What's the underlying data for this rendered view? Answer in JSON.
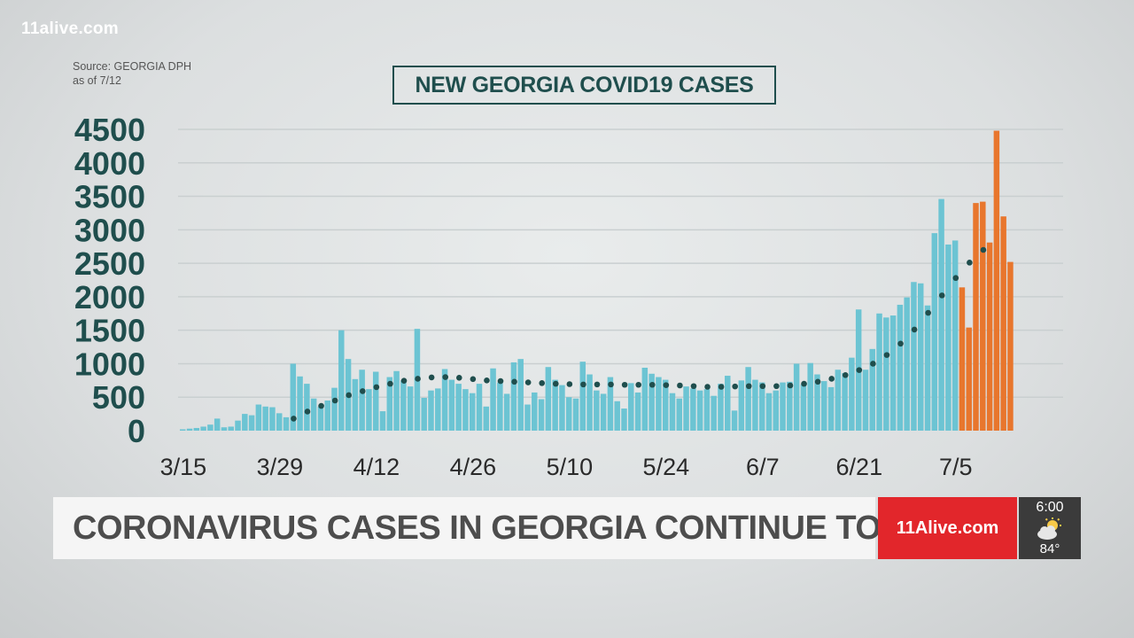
{
  "watermark": "11alive.com",
  "source_line1": "Source: GEORGIA DPH",
  "source_line2": "as of 7/12",
  "lower_third": {
    "headline": "CORONAVIRUS CASES IN GEORGIA CONTINUE TO RISE",
    "brand": "11Alive.com",
    "time": "6:00",
    "weather_icon": "partly-cloudy-icon",
    "temperature": "84°"
  },
  "colors": {
    "bar": "#6cc4d3",
    "recent_bar": "#e8762d",
    "trend": "#1f4e4d",
    "axis_text": "#1f4e4d",
    "brand_red": "#e2262b"
  },
  "chart_data": {
    "type": "bar",
    "title": "NEW GEORGIA COVID19 CASES",
    "xlabel": "",
    "ylabel": "",
    "ylim": [
      0,
      4500
    ],
    "yticks": [
      "0",
      "500",
      "1000",
      "1500",
      "2000",
      "2500",
      "3000",
      "3500",
      "4000",
      "4500"
    ],
    "xticks": [
      "3/15",
      "3/29",
      "4/12",
      "4/26",
      "5/10",
      "5/24",
      "6/7",
      "6/21",
      "7/5"
    ],
    "grid": true,
    "start_date": "3/15",
    "values": [
      20,
      30,
      40,
      60,
      90,
      180,
      50,
      60,
      150,
      250,
      230,
      390,
      360,
      350,
      260,
      200,
      1000,
      810,
      700,
      480,
      360,
      450,
      640,
      1500,
      1070,
      770,
      910,
      620,
      880,
      290,
      800,
      890,
      750,
      660,
      1520,
      490,
      600,
      630,
      920,
      760,
      700,
      620,
      560,
      700,
      360,
      930,
      720,
      550,
      1020,
      1070,
      390,
      570,
      470,
      950,
      760,
      680,
      500,
      480,
      1030,
      840,
      600,
      550,
      800,
      440,
      330,
      710,
      570,
      940,
      850,
      800,
      760,
      560,
      480,
      660,
      630,
      600,
      620,
      520,
      700,
      820,
      300,
      750,
      950,
      760,
      720,
      560,
      600,
      720,
      730,
      1000,
      690,
      1010,
      840,
      740,
      650,
      910,
      860,
      1090,
      1810,
      910,
      1220,
      1750,
      1690,
      1720,
      1880,
      1990,
      2220,
      2200,
      1870,
      2950,
      3460,
      2780,
      2840,
      2140,
      1540,
      3400,
      3420,
      2810,
      4480,
      3200,
      2520
    ],
    "recent_count": 8,
    "trend": [
      null,
      null,
      null,
      null,
      null,
      null,
      null,
      null,
      null,
      null,
      null,
      null,
      null,
      null,
      null,
      null,
      180,
      235,
      285,
      330,
      370,
      410,
      450,
      490,
      530,
      560,
      590,
      620,
      650,
      675,
      700,
      725,
      745,
      760,
      775,
      790,
      795,
      800,
      800,
      795,
      790,
      780,
      770,
      760,
      750,
      745,
      740,
      735,
      730,
      725,
      720,
      715,
      710,
      705,
      700,
      700,
      695,
      695,
      690,
      690,
      690,
      690,
      690,
      685,
      685,
      685,
      685,
      685,
      685,
      685,
      680,
      680,
      675,
      670,
      665,
      660,
      655,
      655,
      655,
      655,
      660,
      660,
      665,
      665,
      665,
      665,
      665,
      670,
      675,
      685,
      700,
      715,
      730,
      750,
      775,
      800,
      830,
      865,
      905,
      950,
      1000,
      1060,
      1130,
      1210,
      1300,
      1400,
      1510,
      1630,
      1760,
      1890,
      2020,
      2150,
      2280,
      2400,
      2510,
      2610,
      2700,
      2790,
      null
    ]
  }
}
